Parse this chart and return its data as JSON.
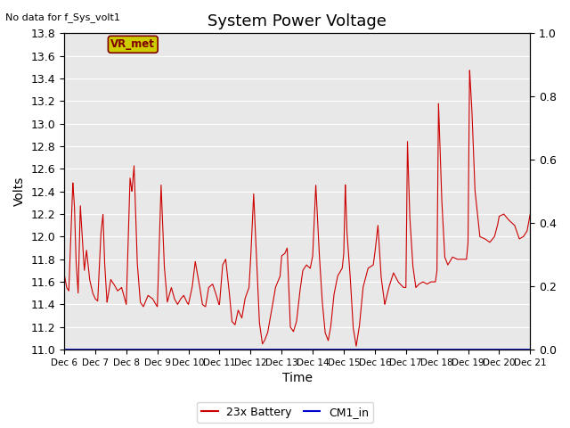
{
  "title": "System Power Voltage",
  "top_left_text": "No data for f_Sys_volt1",
  "xlabel": "Time",
  "ylabel": "Volts",
  "ylim_left": [
    11.0,
    13.8
  ],
  "ylim_right": [
    0.0,
    1.0
  ],
  "yticks_left": [
    11.0,
    11.2,
    11.4,
    11.6,
    11.8,
    12.0,
    12.2,
    12.4,
    12.6,
    12.8,
    13.0,
    13.2,
    13.4,
    13.6,
    13.8
  ],
  "yticks_right": [
    0.0,
    0.2,
    0.4,
    0.6,
    0.8,
    1.0
  ],
  "xtick_labels": [
    "Dec 6",
    "Dec 7",
    "Dec 8",
    "Dec 9",
    "Dec 10",
    "Dec 11",
    "Dec 12",
    "Dec 13",
    "Dec 14",
    "Dec 15",
    "Dec 16",
    "Dec 17",
    "Dec 18",
    "Dec 19",
    "Dec 20",
    "Dec 21"
  ],
  "legend_labels": [
    "23x Battery",
    "CM1_in"
  ],
  "legend_colors": [
    "#cc0000",
    "#0000cc"
  ],
  "annotation_text": "VR_met",
  "annotation_bg": "#cccc00",
  "annotation_border": "#800000",
  "bg_color": "#ffffff",
  "plot_bg_color": "#e8e8e8",
  "grid_color": "#ffffff",
  "line_color_battery": "#cc0000",
  "line_color_cm1": "#0000cc",
  "title_fontsize": 13,
  "label_fontsize": 10,
  "tick_fontsize": 9
}
